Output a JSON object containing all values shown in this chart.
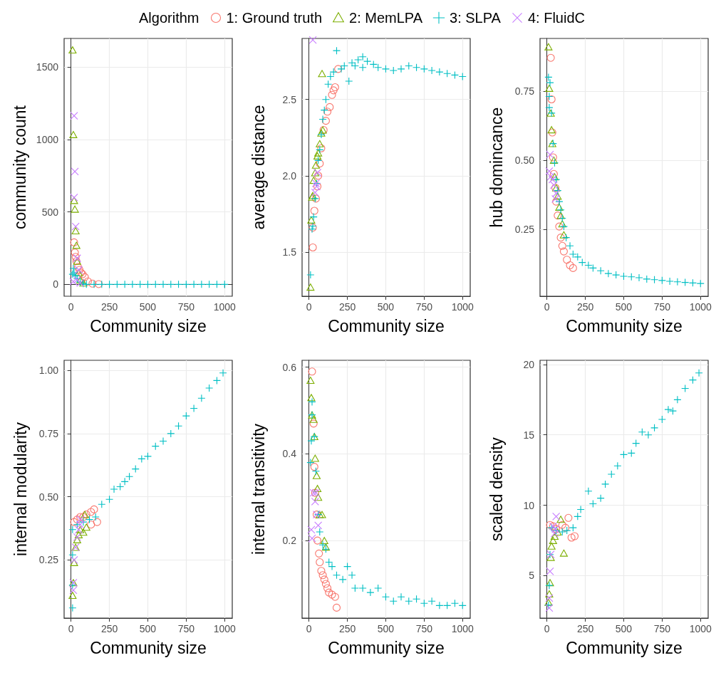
{
  "chart_data": [
    {
      "type": "scatter",
      "legend": "top",
      "legend_title": "Algorithm",
      "xlabel": "Community size",
      "ylabel": "community count",
      "xlim": [
        -45,
        1050
      ],
      "xticks": [
        0,
        250,
        500,
        750,
        1000
      ],
      "ylim": [
        -82,
        1699
      ],
      "yticks": [
        0,
        500,
        1000,
        1500
      ],
      "grid": true,
      "series": [
        {
          "name": "1: Ground truth",
          "color": "#f8766d",
          "marker": "circle",
          "x": [
            20,
            25,
            30,
            35,
            45,
            55,
            65,
            75,
            90,
            110,
            140,
            180
          ],
          "values": [
            290,
            220,
            190,
            160,
            120,
            100,
            80,
            70,
            50,
            20,
            5,
            2
          ]
        },
        {
          "name": "2: MemLPA",
          "color": "#7cae00",
          "marker": "triangle",
          "x": [
            10,
            15,
            20,
            25,
            30,
            35,
            40,
            50,
            60,
            80
          ],
          "values": [
            1620,
            1035,
            580,
            520,
            370,
            270,
            160,
            80,
            30,
            10
          ]
        },
        {
          "name": "3: SLPA",
          "color": "#00bfc4",
          "marker": "plus",
          "x": [
            10,
            15,
            20,
            30,
            40,
            60,
            80,
            100,
            150,
            200,
            250,
            300,
            350,
            400,
            450,
            500,
            550,
            600,
            650,
            700,
            750,
            800,
            850,
            900,
            950,
            1000
          ],
          "values": [
            70,
            110,
            80,
            60,
            40,
            15,
            5,
            0,
            0,
            0,
            0,
            0,
            0,
            0,
            0,
            0,
            0,
            0,
            0,
            0,
            0,
            0,
            0,
            0,
            0,
            0
          ]
        },
        {
          "name": "4: FluidC",
          "color": "#c77cff",
          "marker": "cross",
          "x": [
            20,
            25,
            20,
            30,
            40,
            50,
            15,
            40,
            60
          ],
          "values": [
            1165,
            780,
            600,
            400,
            180,
            100,
            20,
            30,
            10
          ]
        }
      ]
    },
    {
      "type": "scatter",
      "xlabel": "Community size",
      "ylabel": "average distance",
      "xlim": [
        -45,
        1050
      ],
      "xticks": [
        0,
        250,
        500,
        750,
        1000
      ],
      "ylim": [
        1.21,
        2.9
      ],
      "yticks": [
        1.5,
        {
          "value": 2,
          "label": "2.0"
        },
        2.5
      ],
      "grid": true,
      "series": [
        {
          "color": "#f8766d",
          "marker": "circle",
          "x": [
            25,
            25,
            35,
            45,
            55,
            60,
            70,
            80,
            95,
            110,
            120,
            135,
            150,
            160,
            170,
            190
          ],
          "values": [
            1.53,
            1.66,
            1.77,
            1.85,
            1.93,
            2.0,
            2.08,
            2.18,
            2.3,
            2.36,
            2.42,
            2.45,
            2.53,
            2.56,
            2.58,
            2.7
          ]
        },
        {
          "color": "#7cae00",
          "marker": "triangle",
          "x": [
            10,
            15,
            20,
            25,
            30,
            40,
            45,
            55,
            60,
            70,
            80,
            90,
            85
          ],
          "values": [
            1.27,
            1.71,
            1.86,
            1.87,
            1.97,
            2.02,
            2.07,
            2.13,
            2.15,
            2.21,
            2.28,
            2.3,
            2.67
          ]
        },
        {
          "color": "#00bfc4",
          "marker": "plus",
          "x": [
            10,
            20,
            25,
            30,
            40,
            50,
            60,
            70,
            80,
            90,
            100,
            110,
            125,
            140,
            160,
            180,
            210,
            230,
            260,
            280,
            300,
            320,
            350,
            350,
            380,
            420,
            450,
            500,
            550,
            600,
            650,
            700,
            750,
            800,
            850,
            900,
            950,
            1000
          ],
          "values": [
            1.35,
            1.65,
            1.67,
            1.73,
            1.85,
            1.95,
            2.1,
            2.17,
            2.27,
            2.37,
            2.43,
            2.5,
            2.6,
            2.65,
            2.68,
            2.82,
            2.7,
            2.72,
            2.62,
            2.74,
            2.72,
            2.76,
            2.78,
            2.71,
            2.75,
            2.73,
            2.71,
            2.7,
            2.69,
            2.7,
            2.72,
            2.71,
            2.7,
            2.69,
            2.68,
            2.67,
            2.66,
            2.65
          ]
        },
        {
          "color": "#c77cff",
          "marker": "cross",
          "x": [
            25,
            40,
            45,
            55,
            50
          ],
          "values": [
            2.89,
            1.89,
            1.95,
            2.02,
            1.93
          ]
        }
      ]
    },
    {
      "type": "scatter",
      "xlabel": "Community size",
      "ylabel": "hub domincance",
      "xlim": [
        -45,
        1050
      ],
      "xticks": [
        0,
        250,
        500,
        750,
        1000
      ],
      "ylim": [
        0.008,
        0.94
      ],
      "yticks": [
        0.25,
        {
          "value": 0.5,
          "label": "0.50"
        },
        0.75
      ],
      "grid": true,
      "series": [
        {
          "color": "#f8766d",
          "marker": "circle",
          "x": [
            25,
            30,
            35,
            40,
            45,
            55,
            60,
            70,
            80,
            90,
            100,
            110,
            130,
            150,
            170
          ],
          "values": [
            0.87,
            0.72,
            0.6,
            0.51,
            0.45,
            0.4,
            0.35,
            0.3,
            0.26,
            0.22,
            0.19,
            0.17,
            0.14,
            0.12,
            0.11
          ]
        },
        {
          "color": "#7cae00",
          "marker": "triangle",
          "x": [
            10,
            15,
            25,
            30,
            35,
            45,
            50,
            60,
            70,
            80,
            90,
            100,
            110
          ],
          "values": [
            0.91,
            0.76,
            0.67,
            0.61,
            0.56,
            0.5,
            0.44,
            0.4,
            0.37,
            0.33,
            0.3,
            0.27,
            0.23
          ]
        },
        {
          "color": "#00bfc4",
          "marker": "plus",
          "x": [
            10,
            20,
            15,
            15,
            30,
            40,
            50,
            60,
            70,
            80,
            90,
            100,
            110,
            125,
            150,
            170,
            200,
            230,
            270,
            300,
            350,
            400,
            450,
            500,
            550,
            600,
            650,
            700,
            750,
            800,
            850,
            900,
            950,
            1000
          ],
          "values": [
            0.8,
            0.78,
            0.73,
            0.69,
            0.67,
            0.56,
            0.49,
            0.43,
            0.39,
            0.35,
            0.32,
            0.29,
            0.26,
            0.22,
            0.19,
            0.16,
            0.15,
            0.13,
            0.12,
            0.11,
            0.1,
            0.09,
            0.085,
            0.08,
            0.078,
            0.075,
            0.07,
            0.068,
            0.065,
            0.062,
            0.06,
            0.058,
            0.056,
            0.054
          ]
        },
        {
          "color": "#c77cff",
          "marker": "cross",
          "x": [
            20,
            15,
            25,
            35,
            45,
            60,
            55
          ],
          "values": [
            0.52,
            0.46,
            0.44,
            0.43,
            0.41,
            0.38,
            0.36
          ]
        }
      ]
    },
    {
      "type": "scatter",
      "xlabel": "Community size",
      "ylabel": "internal modularity",
      "xlim": [
        -45,
        1050
      ],
      "xticks": [
        0,
        250,
        500,
        750,
        1000
      ],
      "ylim": [
        0.02,
        1.04
      ],
      "yticks": [
        0.25,
        {
          "value": 0.5,
          "label": "0.50"
        },
        0.75,
        {
          "value": 1,
          "label": "1.00"
        }
      ],
      "grid": true,
      "series": [
        {
          "color": "#f8766d",
          "marker": "circle",
          "x": [
            20,
            40,
            60,
            80,
            100,
            130,
            150,
            170,
            130
          ],
          "values": [
            0.4,
            0.41,
            0.42,
            0.42,
            0.43,
            0.44,
            0.45,
            0.4,
            0.39
          ]
        },
        {
          "color": "#7cae00",
          "marker": "triangle",
          "x": [
            10,
            15,
            20,
            30,
            40,
            50,
            60,
            80,
            100,
            90
          ],
          "values": [
            0.11,
            0.16,
            0.24,
            0.3,
            0.33,
            0.35,
            0.37,
            0.36,
            0.38,
            0.43
          ]
        },
        {
          "color": "#00bfc4",
          "marker": "plus",
          "x": [
            10,
            10,
            10,
            10,
            40,
            80,
            120,
            160,
            200,
            250,
            280,
            320,
            350,
            380,
            420,
            460,
            500,
            550,
            600,
            650,
            700,
            750,
            800,
            850,
            900,
            950,
            990
          ],
          "values": [
            0.06,
            0.15,
            0.27,
            0.37,
            0.39,
            0.4,
            0.41,
            0.42,
            0.47,
            0.49,
            0.53,
            0.54,
            0.56,
            0.58,
            0.61,
            0.65,
            0.66,
            0.7,
            0.72,
            0.75,
            0.78,
            0.82,
            0.85,
            0.89,
            0.93,
            0.96,
            0.99
          ]
        },
        {
          "color": "#c77cff",
          "marker": "cross",
          "x": [
            15,
            15,
            20,
            30,
            40,
            50,
            60,
            60
          ],
          "values": [
            0.13,
            0.16,
            0.25,
            0.3,
            0.34,
            0.37,
            0.39,
            0.41
          ]
        }
      ]
    },
    {
      "type": "scatter",
      "xlabel": "Community size",
      "ylabel": "internal transitivity",
      "xlim": [
        -45,
        1050
      ],
      "xticks": [
        0,
        250,
        500,
        750,
        1000
      ],
      "ylim": [
        0.021,
        0.616
      ],
      "yticks": [
        0.2,
        0.4,
        0.6
      ],
      "grid": true,
      "series": [
        {
          "color": "#f8766d",
          "marker": "circle",
          "x": [
            20,
            30,
            35,
            40,
            50,
            55,
            65,
            70,
            80,
            90,
            100,
            110,
            120,
            130,
            150,
            170,
            180
          ],
          "values": [
            0.59,
            0.47,
            0.37,
            0.31,
            0.26,
            0.2,
            0.17,
            0.15,
            0.13,
            0.12,
            0.11,
            0.1,
            0.09,
            0.08,
            0.075,
            0.07,
            0.045
          ]
        },
        {
          "color": "#7cae00",
          "marker": "triangle",
          "x": [
            10,
            15,
            20,
            30,
            35,
            40,
            50,
            55,
            60,
            70,
            85,
            100,
            110
          ],
          "values": [
            0.57,
            0.53,
            0.49,
            0.48,
            0.44,
            0.39,
            0.35,
            0.32,
            0.3,
            0.26,
            0.26,
            0.2,
            0.185
          ]
        },
        {
          "color": "#00bfc4",
          "marker": "plus",
          "x": [
            10,
            15,
            20,
            20,
            35,
            45,
            60,
            70,
            90,
            110,
            130,
            150,
            180,
            220,
            250,
            280,
            300,
            350,
            400,
            450,
            500,
            550,
            600,
            650,
            700,
            750,
            800,
            850,
            900,
            950,
            1000
          ],
          "values": [
            0.38,
            0.43,
            0.52,
            0.49,
            0.44,
            0.36,
            0.26,
            0.22,
            0.19,
            0.18,
            0.15,
            0.14,
            0.12,
            0.11,
            0.14,
            0.12,
            0.09,
            0.09,
            0.08,
            0.09,
            0.07,
            0.06,
            0.07,
            0.06,
            0.065,
            0.055,
            0.06,
            0.05,
            0.05,
            0.055,
            0.05
          ]
        },
        {
          "color": "#c77cff",
          "marker": "cross",
          "x": [
            20,
            15,
            30,
            40,
            50,
            60,
            45
          ],
          "values": [
            0.205,
            0.225,
            0.31,
            0.29,
            0.26,
            0.235,
            0.31
          ]
        }
      ]
    },
    {
      "type": "scatter",
      "xlabel": "Community size",
      "ylabel": "scaled density",
      "xlim": [
        -45,
        1050
      ],
      "xticks": [
        0,
        250,
        500,
        750,
        1000
      ],
      "ylim": [
        1.98,
        20.3
      ],
      "yticks": [
        5,
        10,
        15,
        20
      ],
      "grid": true,
      "series": [
        {
          "color": "#f8766d",
          "marker": "circle",
          "x": [
            20,
            40,
            60,
            100,
            140,
            160,
            180,
            120
          ],
          "values": [
            8.6,
            8.5,
            8.3,
            8.6,
            9.1,
            7.7,
            7.8,
            8.4
          ]
        },
        {
          "color": "#7cae00",
          "marker": "triangle",
          "x": [
            10,
            15,
            20,
            25,
            30,
            40,
            50,
            70,
            90,
            110
          ],
          "values": [
            3.1,
            3.7,
            4.5,
            6.3,
            7.1,
            7.5,
            7.8,
            8.1,
            9.0,
            6.6
          ]
        },
        {
          "color": "#00bfc4",
          "marker": "plus",
          "x": [
            10,
            15,
            20,
            30,
            60,
            100,
            130,
            170,
            200,
            220,
            270,
            300,
            350,
            380,
            420,
            460,
            500,
            550,
            580,
            620,
            660,
            700,
            750,
            790,
            820,
            850,
            900,
            950,
            990
          ],
          "values": [
            2.9,
            4.3,
            6.5,
            8.4,
            8.2,
            8.1,
            8.2,
            8.4,
            9.2,
            9.7,
            11.0,
            10.1,
            10.5,
            11.5,
            12.2,
            12.8,
            13.6,
            13.7,
            14.4,
            15.2,
            15.0,
            15.5,
            16.1,
            16.8,
            16.7,
            17.5,
            18.3,
            18.9,
            19.4
          ]
        },
        {
          "color": "#c77cff",
          "marker": "cross",
          "x": [
            15,
            15,
            20,
            25,
            40,
            55,
            60,
            50
          ],
          "values": [
            2.7,
            3.4,
            5.3,
            6.5,
            8.5,
            8.3,
            9.2,
            8.0
          ]
        }
      ]
    }
  ]
}
